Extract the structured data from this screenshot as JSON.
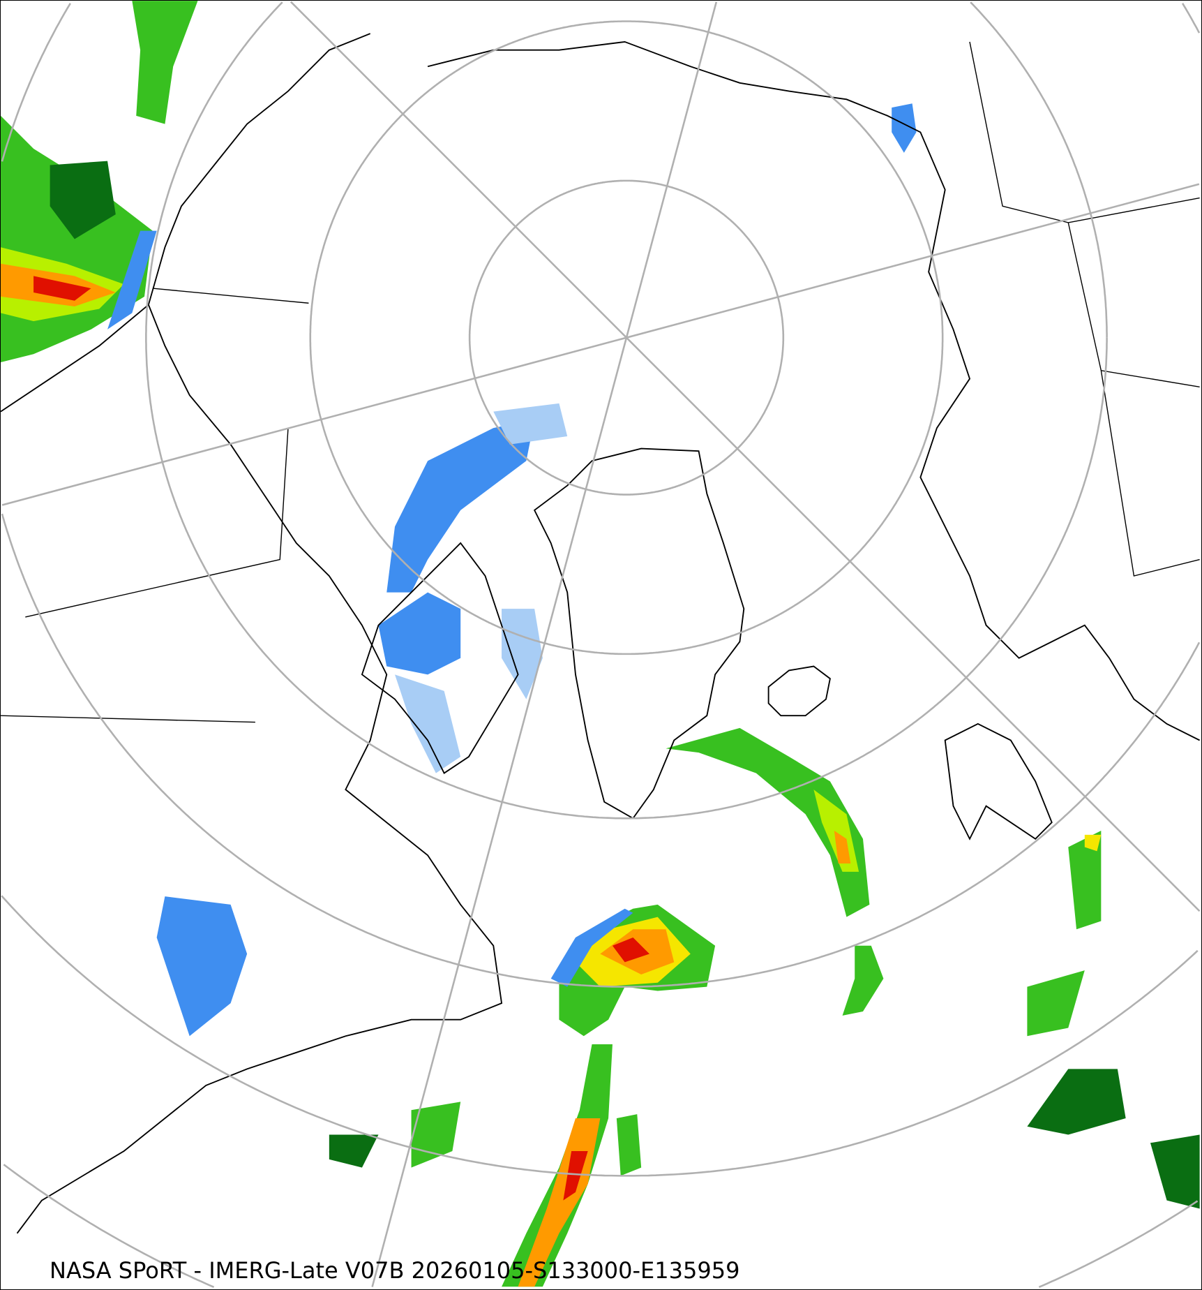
{
  "map": {
    "caption": "NASA SPoRT - IMERG-Late V07B 20260105-S133000-E135959",
    "projection": "north-polar-stereographic",
    "graticule_color": "#b0b0b0",
    "coastline_color": "#000000",
    "precip_colors": {
      "light_blue": "#a8cdf5",
      "blue": "#3f8ef0",
      "dark_green": "#0a6e12",
      "green": "#38c020",
      "yellow_green": "#b8f000",
      "yellow": "#f5e600",
      "orange": "#ff9a00",
      "red": "#e01000",
      "magenta": "#e040e0"
    }
  }
}
